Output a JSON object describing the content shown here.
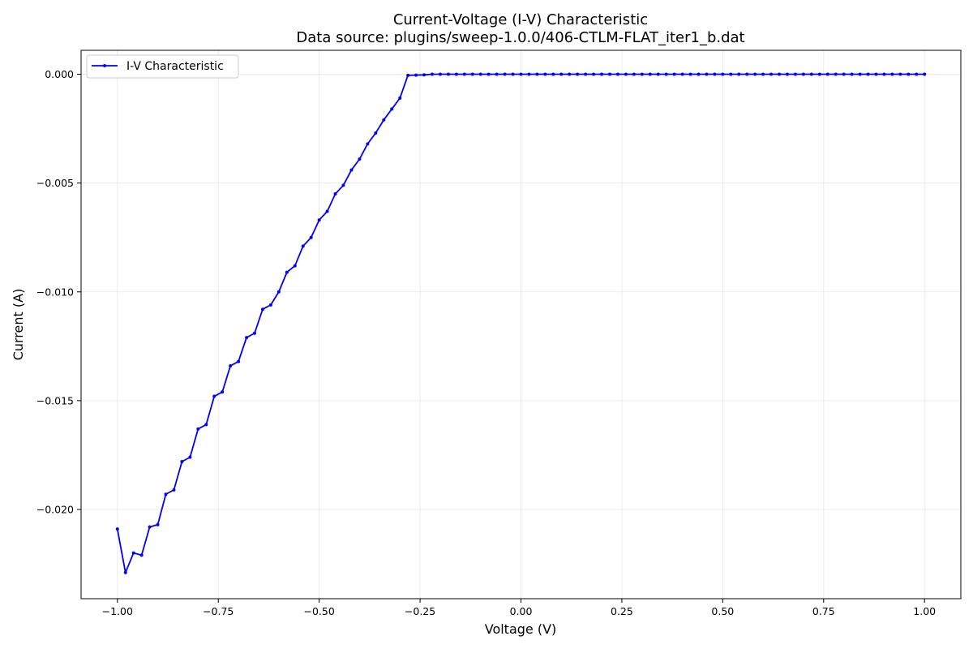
{
  "chart_data": {
    "type": "line",
    "title": "Current-Voltage (I-V) Characteristic",
    "subtitle": "Data source: plugins/sweep-1.0.0/406-CTLM-FLAT_iter1_b.dat",
    "xlabel": "Voltage (V)",
    "ylabel": "Current (A)",
    "xlim": [
      -1.09,
      1.09
    ],
    "ylim": [
      -0.0241,
      0.0011
    ],
    "grid": true,
    "legend_position": "top-left",
    "x_ticks": [
      -1.0,
      -0.75,
      -0.5,
      -0.25,
      0.0,
      0.25,
      0.5,
      0.75,
      1.0
    ],
    "x_tick_labels": [
      "−1.00",
      "−0.75",
      "−0.50",
      "−0.25",
      "0.00",
      "0.25",
      "0.50",
      "0.75",
      "1.00"
    ],
    "y_ticks": [
      0.0,
      -0.005,
      -0.01,
      -0.015,
      -0.02
    ],
    "y_tick_labels": [
      "0.000",
      "−0.005",
      "−0.010",
      "−0.015",
      "−0.020"
    ],
    "series": [
      {
        "name": "I-V Characteristic",
        "color": "#0000ff",
        "x": [
          -1.0,
          -0.98,
          -0.96,
          -0.94,
          -0.92,
          -0.9,
          -0.88,
          -0.86,
          -0.84,
          -0.82,
          -0.8,
          -0.78,
          -0.76,
          -0.74,
          -0.72,
          -0.7,
          -0.68,
          -0.66,
          -0.64,
          -0.62,
          -0.6,
          -0.58,
          -0.56,
          -0.54,
          -0.52,
          -0.5,
          -0.48,
          -0.46,
          -0.44,
          -0.42,
          -0.4,
          -0.38,
          -0.36,
          -0.34,
          -0.32,
          -0.3,
          -0.28,
          -0.26,
          -0.24,
          -0.22,
          -0.2,
          -0.18,
          -0.16,
          -0.14,
          -0.12,
          -0.1,
          -0.08,
          -0.06,
          -0.04,
          -0.02,
          0.0,
          0.02,
          0.04,
          0.06,
          0.08,
          0.1,
          0.12,
          0.14,
          0.16,
          0.18,
          0.2,
          0.22,
          0.24,
          0.26,
          0.28,
          0.3,
          0.32,
          0.34,
          0.36,
          0.38,
          0.4,
          0.42,
          0.44,
          0.46,
          0.48,
          0.5,
          0.52,
          0.54,
          0.56,
          0.58,
          0.6,
          0.62,
          0.64,
          0.66,
          0.68,
          0.7,
          0.72,
          0.74,
          0.76,
          0.78,
          0.8,
          0.82,
          0.84,
          0.86,
          0.88,
          0.9,
          0.92,
          0.94,
          0.96,
          0.98,
          1.0
        ],
        "y": [
          -0.0209,
          -0.0229,
          -0.022,
          -0.0221,
          -0.0208,
          -0.0207,
          -0.0193,
          -0.0191,
          -0.0178,
          -0.0176,
          -0.0163,
          -0.0161,
          -0.0148,
          -0.0146,
          -0.0134,
          -0.0132,
          -0.0121,
          -0.0119,
          -0.0108,
          -0.0106,
          -0.01,
          -0.0091,
          -0.0088,
          -0.0079,
          -0.0075,
          -0.0067,
          -0.0063,
          -0.0055,
          -0.0051,
          -0.0044,
          -0.0039,
          -0.0032,
          -0.0027,
          -0.0021,
          -0.0016,
          -0.0011,
          -5e-05,
          -4e-05,
          -3e-05,
          0.0,
          0.0,
          0.0,
          0.0,
          0.0,
          0.0,
          0.0,
          0.0,
          0.0,
          0.0,
          0.0,
          0.0,
          0.0,
          0.0,
          0.0,
          0.0,
          0.0,
          0.0,
          0.0,
          0.0,
          0.0,
          0.0,
          0.0,
          0.0,
          0.0,
          0.0,
          0.0,
          0.0,
          0.0,
          0.0,
          0.0,
          0.0,
          0.0,
          0.0,
          0.0,
          0.0,
          0.0,
          0.0,
          0.0,
          0.0,
          0.0,
          0.0,
          0.0,
          0.0,
          0.0,
          0.0,
          0.0,
          0.0,
          0.0,
          0.0,
          0.0,
          0.0,
          0.0,
          0.0,
          0.0,
          0.0,
          0.0,
          0.0,
          0.0,
          0.0,
          0.0,
          0.0
        ]
      }
    ]
  }
}
